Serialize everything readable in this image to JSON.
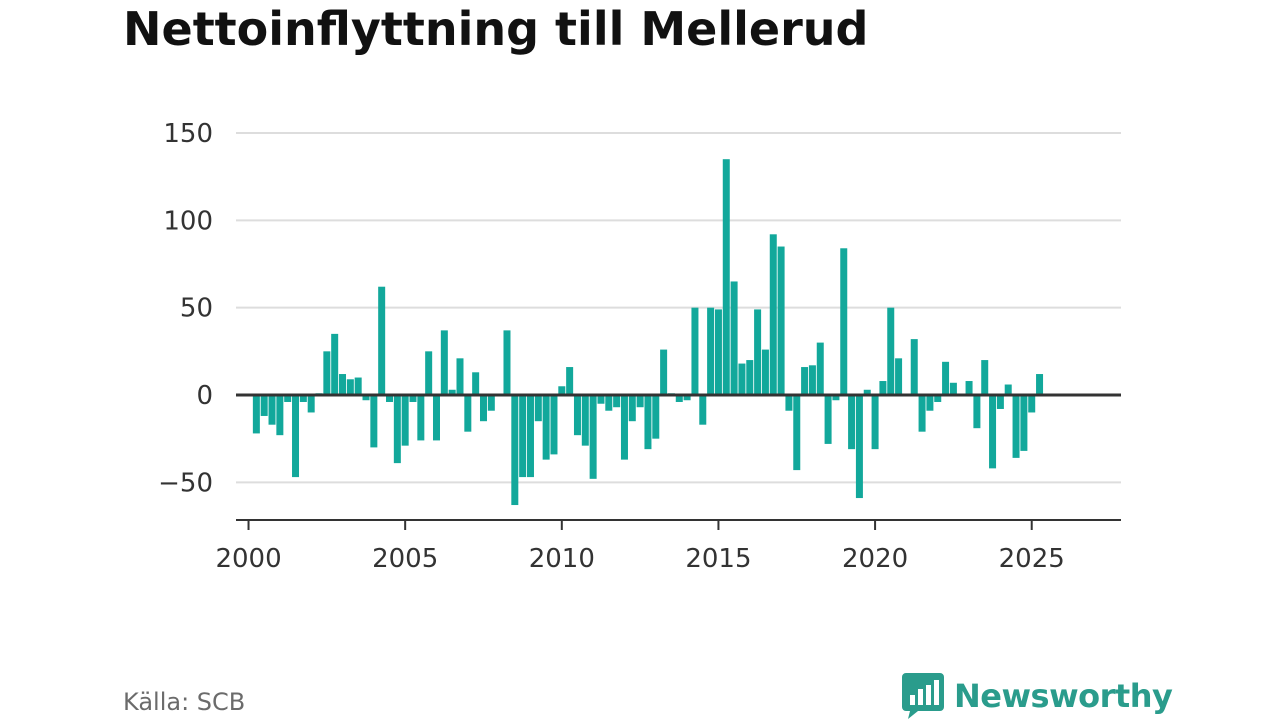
{
  "title": "Nettoinflyttning till Mellerud",
  "source": "Källa: SCB",
  "brand": {
    "name": "Newsworthy",
    "icon": "newsworthy-chart-bubble-icon",
    "color": "#2a9c8c"
  },
  "colors": {
    "bar": "#12a89b",
    "zero_line": "#333333",
    "grid": "#dddddd"
  },
  "chart_data": {
    "type": "bar",
    "title": "Nettoinflyttning till Mellerud",
    "xlabel": "",
    "ylabel": "",
    "ylim": [
      -72,
      150
    ],
    "xlim": [
      1999.6,
      2027.85
    ],
    "y_ticks": [
      -50,
      0,
      50,
      100,
      150
    ],
    "x_ticks": [
      2000,
      2005,
      2010,
      2015,
      2020,
      2025
    ],
    "y_tick_labels": [
      "−50",
      "0",
      "50",
      "100",
      "150"
    ],
    "x_tick_labels": [
      "2000",
      "2005",
      "2010",
      "2015",
      "2020",
      "2025"
    ],
    "grid": true,
    "frequency": "quarterly",
    "x": [
      "2000 K1",
      "2000 K2",
      "2000 K3",
      "2000 K4",
      "2001 K1",
      "2001 K2",
      "2001 K3",
      "2001 K4",
      "2002 K1",
      "2002 K2",
      "2002 K3",
      "2002 K4",
      "2003 K1",
      "2003 K2",
      "2003 K3",
      "2003 K4",
      "2004 K1",
      "2004 K2",
      "2004 K3",
      "2004 K4",
      "2005 K1",
      "2005 K2",
      "2005 K3",
      "2005 K4",
      "2006 K1",
      "2006 K2",
      "2006 K3",
      "2006 K4",
      "2007 K1",
      "2007 K2",
      "2007 K3",
      "2007 K4",
      "2008 K1",
      "2008 K2",
      "2008 K3",
      "2008 K4",
      "2009 K1",
      "2009 K2",
      "2009 K3",
      "2009 K4",
      "2010 K1",
      "2010 K2",
      "2010 K3",
      "2010 K4",
      "2011 K1",
      "2011 K2",
      "2011 K3",
      "2011 K4",
      "2012 K1",
      "2012 K2",
      "2012 K3",
      "2012 K4",
      "2013 K1",
      "2013 K2",
      "2013 K3",
      "2013 K4",
      "2014 K1",
      "2014 K2",
      "2014 K3",
      "2014 K4",
      "2015 K1",
      "2015 K2",
      "2015 K3",
      "2015 K4",
      "2016 K1",
      "2016 K2",
      "2016 K3",
      "2016 K4",
      "2017 K1",
      "2017 K2",
      "2017 K3",
      "2017 K4",
      "2018 K1",
      "2018 K2",
      "2018 K3",
      "2018 K4",
      "2019 K1",
      "2019 K2",
      "2019 K3",
      "2019 K4",
      "2020 K1",
      "2020 K2",
      "2020 K3",
      "2020 K4",
      "2021 K1",
      "2021 K2",
      "2021 K3",
      "2021 K4",
      "2022 K1",
      "2022 K2",
      "2022 K3",
      "2022 K4",
      "2023 K1",
      "2023 K2",
      "2023 K3",
      "2023 K4",
      "2024 K1",
      "2024 K2",
      "2024 K3",
      "2024 K4",
      "2025 K1",
      "2025 K2"
    ],
    "values": [
      0,
      -22,
      -12,
      -17,
      -23,
      -4,
      -47,
      -4,
      -10,
      1,
      25,
      35,
      12,
      9,
      10,
      -3,
      -30,
      62,
      -4,
      -39,
      -29,
      -4,
      -26,
      25,
      -26,
      37,
      3,
      21,
      -21,
      13,
      -15,
      -9,
      0,
      37,
      -63,
      -47,
      -47,
      -15,
      -37,
      -34,
      5,
      16,
      -23,
      -29,
      -48,
      -5,
      -9,
      -7,
      -37,
      -15,
      -7,
      -31,
      -25,
      26,
      1,
      -4,
      -3,
      50,
      -17,
      50,
      49,
      135,
      65,
      18,
      20,
      49,
      26,
      92,
      85,
      -9,
      -43,
      16,
      17,
      30,
      -28,
      -3,
      84,
      -31,
      -59,
      3,
      -31,
      8,
      50,
      21,
      0,
      32,
      -21,
      -9,
      -4,
      19,
      7,
      0,
      8,
      -19,
      20,
      -42,
      -8,
      6,
      -36,
      -32,
      -10,
      12
    ]
  }
}
